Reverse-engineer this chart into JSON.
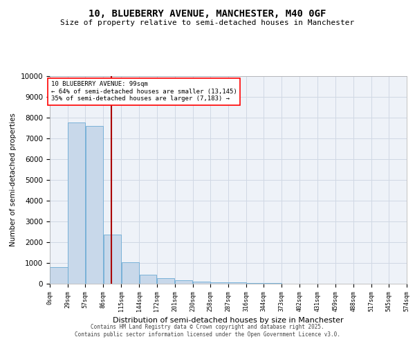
{
  "title": "10, BLUEBERRY AVENUE, MANCHESTER, M40 0GF",
  "subtitle": "Size of property relative to semi-detached houses in Manchester",
  "xlabel": "Distribution of semi-detached houses by size in Manchester",
  "ylabel": "Number of semi-detached properties",
  "annotation_text_line1": "10 BLUEBERRY AVENUE: 99sqm",
  "annotation_text_line2": "← 64% of semi-detached houses are smaller (13,145)",
  "annotation_text_line3": "35% of semi-detached houses are larger (7,183) →",
  "bin_edges": [
    0,
    29,
    57,
    86,
    115,
    144,
    172,
    201,
    230,
    258,
    287,
    316,
    344,
    373,
    402,
    431,
    459,
    488,
    517,
    545,
    574
  ],
  "bin_labels": [
    "0sqm",
    "29sqm",
    "57sqm",
    "86sqm",
    "115sqm",
    "144sqm",
    "172sqm",
    "201sqm",
    "230sqm",
    "258sqm",
    "287sqm",
    "316sqm",
    "344sqm",
    "373sqm",
    "402sqm",
    "431sqm",
    "459sqm",
    "488sqm",
    "517sqm",
    "545sqm",
    "574sqm"
  ],
  "bar_heights": [
    800,
    7750,
    7600,
    2380,
    1040,
    450,
    280,
    160,
    110,
    80,
    60,
    30,
    20,
    15,
    10,
    5,
    3,
    2,
    1,
    1
  ],
  "bar_color": "#c8d8ea",
  "bar_edge_color": "#6aaad4",
  "vline_x": 99,
  "vline_color": "#aa0000",
  "ylim": [
    0,
    10000
  ],
  "yticks": [
    0,
    1000,
    2000,
    3000,
    4000,
    5000,
    6000,
    7000,
    8000,
    9000,
    10000
  ],
  "grid_color": "#d0d8e4",
  "bg_color": "#eef2f8",
  "footer_line1": "Contains HM Land Registry data © Crown copyright and database right 2025.",
  "footer_line2": "Contains public sector information licensed under the Open Government Licence v3.0."
}
